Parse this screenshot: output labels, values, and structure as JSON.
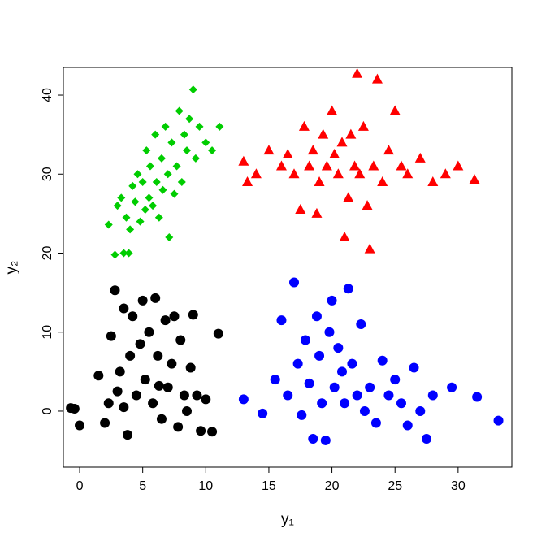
{
  "chart_data": {
    "type": "scatter",
    "xlabel": "y₁",
    "ylabel": "y₂",
    "xlim": [
      -1.29,
      34.26
    ],
    "ylim": [
      -7.1,
      43.5
    ],
    "xticks": [
      0,
      5,
      10,
      15,
      20,
      25,
      30
    ],
    "yticks": [
      0,
      10,
      20,
      30,
      40
    ],
    "grid": false,
    "series": [
      {
        "color": "#000000",
        "marker": "circle",
        "x": [
          -0.7,
          -0.4,
          0,
          1.5,
          2,
          2.3,
          2.5,
          2.8,
          3,
          3.2,
          3.5,
          3.8,
          4,
          4.2,
          4.5,
          4.8,
          5,
          5.2,
          5.5,
          5.8,
          6,
          6.2,
          6.5,
          6.8,
          7,
          7.3,
          7.5,
          7.8,
          8,
          8.3,
          8.5,
          8.8,
          9,
          9.3,
          9.6,
          10,
          10.5,
          11,
          3.5,
          6.3
        ],
        "values": [
          0.4,
          0.3,
          -1.8,
          4.5,
          -1.5,
          1,
          9.5,
          15.3,
          2.5,
          5,
          13,
          -3,
          7,
          12,
          2,
          8.5,
          14,
          4,
          10,
          1,
          14.3,
          7,
          -1,
          11.5,
          3,
          6,
          12,
          -2,
          9,
          2,
          0,
          5.5,
          12.2,
          2,
          -2.5,
          1.5,
          -2.6,
          9.8,
          0.5,
          3.2
        ]
      },
      {
        "color": "#00cd00",
        "marker": "diamond",
        "x": [
          2.3,
          2.8,
          3,
          3.3,
          3.5,
          3.7,
          4,
          4.2,
          4.4,
          4.6,
          4.8,
          5,
          5.2,
          5.3,
          5.5,
          5.6,
          5.8,
          6,
          6.1,
          6.3,
          6.5,
          6.6,
          6.8,
          7,
          7.1,
          7.3,
          7.5,
          7.7,
          7.9,
          8.1,
          8.3,
          8.5,
          8.7,
          9,
          9.2,
          9.5,
          10,
          10.5,
          11.1,
          3.9
        ],
        "values": [
          23.6,
          19.8,
          26,
          27,
          20,
          24.5,
          23,
          28.5,
          26.5,
          30,
          24,
          29,
          25.5,
          33,
          27,
          31,
          26,
          35,
          29,
          24.5,
          32,
          28,
          36,
          30,
          22,
          34,
          27.5,
          31,
          38,
          29,
          35,
          33,
          37,
          40.7,
          32,
          36,
          34,
          33,
          36,
          20
        ]
      },
      {
        "color": "#ff0000",
        "marker": "triangle",
        "x": [
          13,
          13.3,
          14,
          15,
          16,
          16.5,
          17,
          17.5,
          17.8,
          18.2,
          18.5,
          18.8,
          19,
          19.3,
          19.6,
          20,
          20.2,
          20.5,
          20.8,
          21,
          21.3,
          21.5,
          21.8,
          22,
          22.2,
          22.5,
          22.8,
          23,
          23.3,
          23.6,
          24,
          24.5,
          25,
          25.5,
          26,
          27,
          28,
          29,
          30,
          31.3
        ],
        "values": [
          31.6,
          29,
          30,
          33,
          31,
          32.5,
          30,
          25.5,
          36,
          31,
          33,
          25,
          29,
          35,
          31,
          38,
          32.5,
          30,
          34,
          22,
          27,
          35,
          31,
          42.7,
          30,
          36,
          26,
          20.5,
          31,
          42,
          29,
          33,
          38,
          31,
          30,
          32,
          29,
          30,
          31,
          29.3
        ]
      },
      {
        "color": "#0000ff",
        "marker": "circle",
        "x": [
          13,
          14.5,
          15.5,
          16,
          16.5,
          17,
          17.3,
          17.6,
          17.9,
          18.2,
          18.5,
          18.8,
          19,
          19.2,
          19.5,
          19.8,
          20,
          20.2,
          20.5,
          20.8,
          21,
          21.3,
          21.6,
          22,
          22.3,
          22.6,
          23,
          23.5,
          24,
          24.5,
          25,
          25.5,
          26,
          26.5,
          27,
          27.5,
          28,
          29.5,
          31.5,
          33.2
        ],
        "values": [
          1.5,
          -0.3,
          4,
          11.5,
          2,
          16.3,
          6,
          -0.5,
          9,
          3.5,
          -3.5,
          12,
          7,
          1,
          -3.7,
          10,
          14,
          3,
          8,
          5,
          1,
          15.5,
          6,
          2,
          11,
          0,
          3,
          -1.5,
          6.4,
          2,
          4,
          1,
          -1.8,
          5.5,
          0,
          -3.5,
          2,
          3,
          1.8,
          -1.2
        ]
      }
    ]
  }
}
